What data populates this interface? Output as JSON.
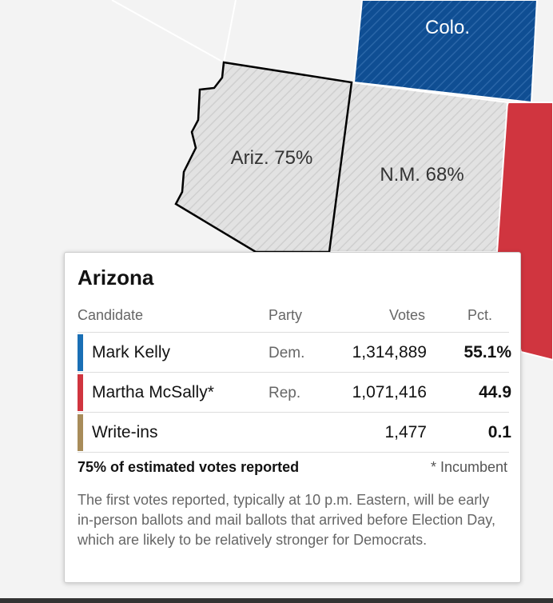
{
  "map": {
    "labels": {
      "colorado": "Colo.",
      "arizona": "Ariz. 75%",
      "new_mexico": "N.M. 68%"
    }
  },
  "tooltip": {
    "title": "Arizona",
    "header": {
      "candidate": "Candidate",
      "party": "Party",
      "votes": "Votes",
      "pct": "Pct."
    },
    "rows": [
      {
        "name": "Mark Kelly",
        "party": "Dem.",
        "votes": "1,314,889",
        "pct": "55.1%"
      },
      {
        "name": "Martha McSally*",
        "party": "Rep.",
        "votes": "1,071,416",
        "pct": "44.9"
      },
      {
        "name": "Write-ins",
        "votes": "1,477",
        "pct": "0.1"
      }
    ],
    "reported": "75% of estimated votes reported",
    "incumbent_note": "* Incumbent",
    "note": "The first votes reported, typically at 10 p.m. Eastern, will be early in-person ballots and mail ballots that arrived before Election Day, which are likely to be relatively stronger for Democrats."
  }
}
